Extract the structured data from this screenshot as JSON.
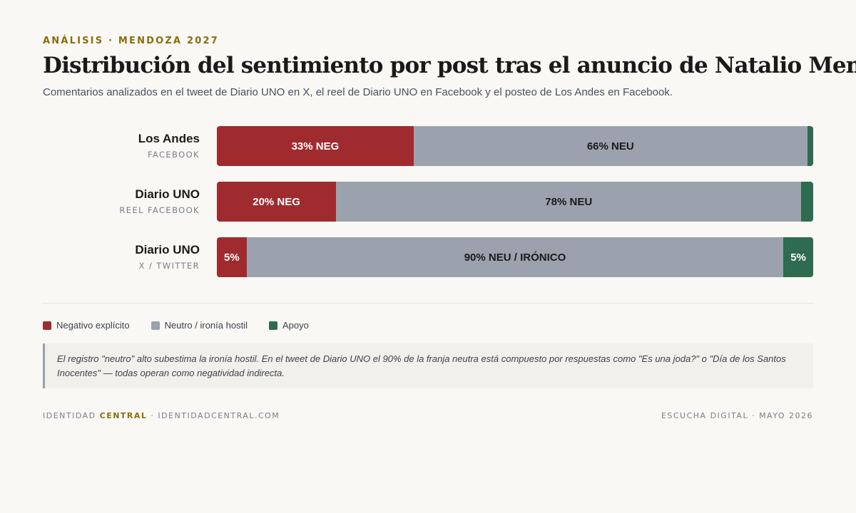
{
  "header": {
    "eyebrow": "ANÁLISIS · MENDOZA 2027",
    "title": "Distribución del sentimiento por post tras el anuncio de Natalio Mema",
    "subtitle": "Comentarios analizados en el tweet de Diario UNO en X, el reel de Diario UNO en Facebook y el posteo de Los Andes en Facebook."
  },
  "colors": {
    "negative": "#a02b2e",
    "neutral": "#9ba2ae",
    "support": "#2e6b4f",
    "accent": "#8a6d0b"
  },
  "chart_data": {
    "type": "bar",
    "orientation": "horizontal",
    "stacked": true,
    "unit": "%",
    "categories": [
      "Los Andes",
      "Diario UNO",
      "Diario UNO"
    ],
    "category_sublabels": [
      "FACEBOOK",
      "REEL FACEBOOK",
      "X / TWITTER"
    ],
    "series": [
      {
        "name": "Negativo explícito",
        "key": "negative",
        "values": [
          33,
          20,
          5
        ],
        "labels": [
          "33% NEG",
          "20% NEG",
          "5%"
        ]
      },
      {
        "name": "Neutro / ironía hostil",
        "key": "neutral",
        "values": [
          66,
          78,
          90
        ],
        "labels": [
          "66% NEU",
          "78% NEU",
          "90% NEU / IRÓNICO"
        ]
      },
      {
        "name": "Apoyo",
        "key": "support",
        "values": [
          1,
          2,
          5
        ],
        "labels": [
          "",
          "",
          "5%"
        ]
      }
    ],
    "xlim": [
      0,
      100
    ],
    "legend_position": "bottom-left"
  },
  "legend": [
    {
      "label": "Negativo explícito",
      "key": "negative"
    },
    {
      "label": "Neutro / ironía hostil",
      "key": "neutral"
    },
    {
      "label": "Apoyo",
      "key": "support"
    }
  ],
  "note": "El registro \"neutro\" alto subestima la ironía hostil. En el tweet de Diario UNO el 90% de la franja neutra está compuesto por respuestas como \"Es una joda?\" o \"Día de los Santos Inocentes\" — todas operan como negatividad indirecta.",
  "footer": {
    "brand_prefix": "IDENTIDAD ",
    "brand_strong": "CENTRAL",
    "brand_suffix": " · IDENTIDADCENTRAL.COM",
    "right": "ESCUCHA DIGITAL · MAYO 2026"
  }
}
